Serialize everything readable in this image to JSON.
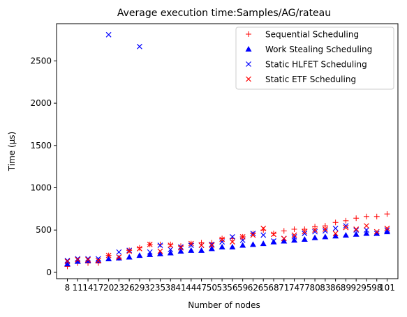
{
  "chart_data": {
    "type": "scatter",
    "title": "Average execution time:Samples/AG/rateau",
    "xlabel": "Number of nodes",
    "ylabel": "Time (µs)",
    "ylim": [
      -75,
      2940
    ],
    "yticks": [
      0,
      500,
      1000,
      1500,
      2000,
      2500
    ],
    "grid": false,
    "legend_position": "top-right",
    "categories": [
      "8",
      "11",
      "14",
      "17",
      "20",
      "23",
      "26",
      "29",
      "32",
      "35",
      "38",
      "41",
      "44",
      "47",
      "50",
      "53",
      "56",
      "59",
      "62",
      "65",
      "68",
      "71",
      "74",
      "77",
      "80",
      "83",
      "86",
      "89",
      "92",
      "95",
      "98",
      "101"
    ],
    "series": [
      {
        "name": "Sequential Scheduling",
        "marker": "plus",
        "color": "#ff0000",
        "values": [
          70,
          110,
          110,
          110,
          200,
          170,
          260,
          290,
          330,
          330,
          330,
          310,
          340,
          350,
          350,
          400,
          400,
          420,
          460,
          500,
          460,
          490,
          510,
          510,
          540,
          550,
          590,
          610,
          640,
          660,
          660,
          690
        ]
      },
      {
        "name": "Work Stealing Scheduling",
        "marker": "triangle",
        "color": "#0000ff",
        "values": [
          100,
          130,
          140,
          140,
          160,
          170,
          180,
          200,
          210,
          220,
          230,
          250,
          260,
          260,
          280,
          300,
          300,
          320,
          330,
          340,
          360,
          370,
          380,
          390,
          410,
          420,
          430,
          440,
          450,
          460,
          460,
          480
        ]
      },
      {
        "name": "Static HLFET Scheduling",
        "marker": "x",
        "color": "#0000ff",
        "values": [
          140,
          160,
          160,
          160,
          2810,
          240,
          260,
          2670,
          240,
          320,
          270,
          300,
          320,
          320,
          330,
          360,
          420,
          380,
          460,
          440,
          370,
          400,
          420,
          460,
          480,
          490,
          520,
          550,
          500,
          500,
          460,
          500
        ]
      },
      {
        "name": "Static ETF Scheduling",
        "marker": "x",
        "color": "#ff0000",
        "values": [
          130,
          150,
          150,
          140,
          200,
          180,
          250,
          280,
          330,
          250,
          320,
          290,
          340,
          320,
          320,
          390,
          360,
          420,
          440,
          520,
          450,
          400,
          440,
          480,
          500,
          510,
          460,
          530,
          510,
          550,
          480,
          520
        ]
      }
    ]
  }
}
